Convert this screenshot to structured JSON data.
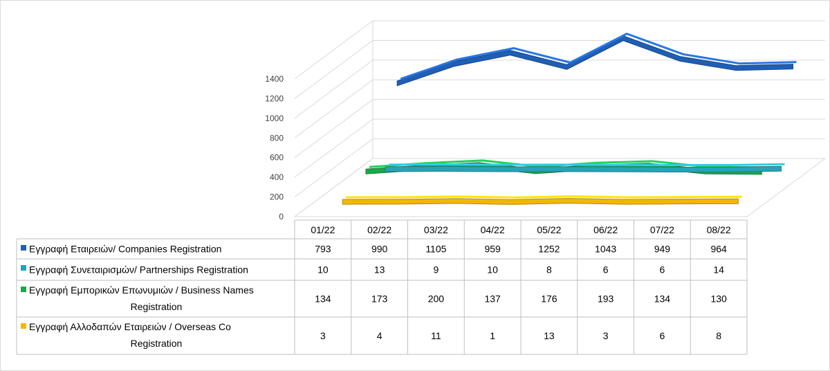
{
  "chart_data": {
    "type": "line",
    "categories": [
      "01/22",
      "02/22",
      "03/22",
      "04/22",
      "05/22",
      "06/22",
      "07/22",
      "08/22"
    ],
    "ylim": [
      0,
      1400
    ],
    "yticks": [
      0,
      200,
      400,
      600,
      800,
      1000,
      1200,
      1400
    ],
    "grid": true,
    "legend": "table-below",
    "series": [
      {
        "name": "Εγγραφή  Εταιρειών/ Companies Registration",
        "name_lines": [
          "Εγγραφή  Εταιρειών/ Companies Registration"
        ],
        "color": "#1f5fb5",
        "values": [
          793,
          990,
          1105,
          959,
          1252,
          1043,
          949,
          964
        ]
      },
      {
        "name": "Εγγραφή  Συνεταιρισμών/ Partnerships Registration",
        "name_lines": [
          "Εγγραφή  Συνεταιρισμών/ Partnerships Registration"
        ],
        "color": "#27a3b8",
        "values": [
          10,
          13,
          9,
          10,
          8,
          6,
          6,
          14
        ]
      },
      {
        "name": "Εγγραφή  Εμπορικών Επωνυμιών / Business Names Registration",
        "name_lines": [
          "Εγγραφή  Εμπορικών Επωνυμιών / Business Names",
          "Registration"
        ],
        "color": "#1aa84a",
        "values": [
          134,
          173,
          200,
          137,
          176,
          193,
          134,
          130
        ]
      },
      {
        "name": "Εγγραφή  Αλλοδαπών  Εταιρειών / Overseas Co Registration",
        "name_lines": [
          "Εγγραφή  Αλλοδαπών  Εταιρειών / Overseas Co",
          "Registration"
        ],
        "color": "#f2b705",
        "values": [
          3,
          4,
          11,
          1,
          13,
          3,
          6,
          8
        ]
      }
    ]
  }
}
